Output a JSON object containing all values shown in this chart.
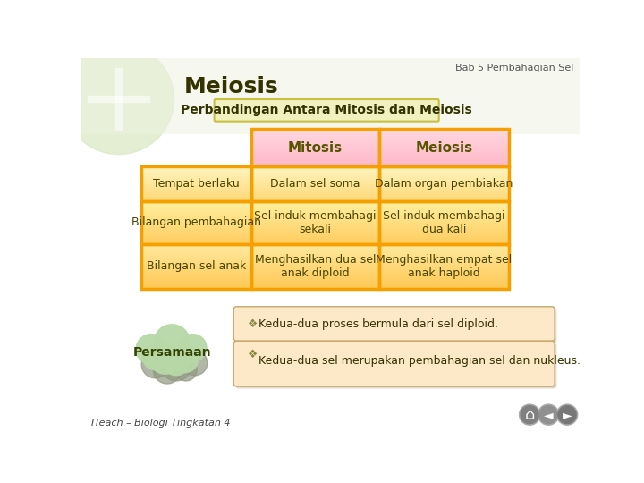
{
  "title_top_right": "Bab 5 Pembahagian Sel",
  "title_main": "Meiosis",
  "subtitle": "Perbandingan Antara Mitosis dan Meiosis",
  "bg_color": "#ffffff",
  "table_header_bg": "#ffd8e0",
  "table_row_bg_top": "#ffe8a0",
  "table_row_bg_bot": "#ffc060",
  "table_border_color": "#f5a000",
  "header_col1": "Mitosis",
  "header_col2": "Meiosis",
  "rows": [
    [
      "Tempat berlaku",
      "Dalam sel soma",
      "Dalam organ pembiakan"
    ],
    [
      "Bilangan pembahagian",
      "Sel induk membahagi\nsekali",
      "Sel induk membahagi\ndua kali"
    ],
    [
      "Bilangan sel anak",
      "Menghasilkan dua sel\nanak diploid",
      "Menghasilkan empat sel\nanak haploid"
    ]
  ],
  "persamaan_label": "Persamaan",
  "bullet1": "Kedua-dua proses bermula dari sel diploid.",
  "bullet2": "Kedua-dua sel merupakan pembahagian sel dan nukleus.",
  "footer": "ITeach – Biologi Tingkatan 4",
  "note_bg": "#fde8c8",
  "note_border": "#c0a060",
  "cloud_color1": "#b8d8a8",
  "cloud_shadow": "#909880",
  "subtitle_bg": "#f0f0c0",
  "subtitle_border": "#c8c040"
}
